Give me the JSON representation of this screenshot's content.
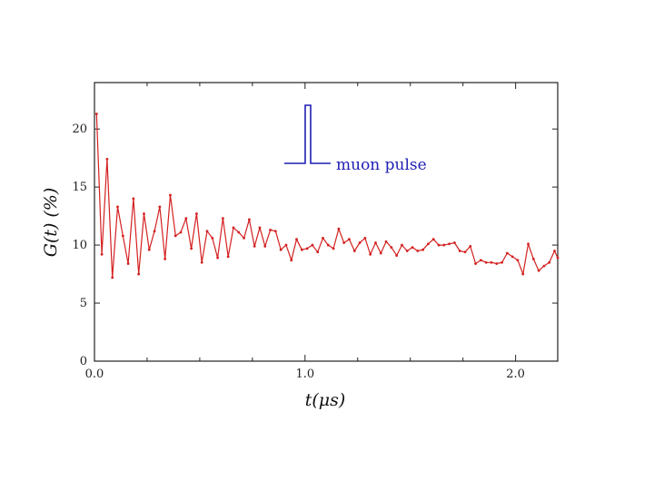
{
  "chart_data": {
    "type": "line",
    "xlabel": "t(μs)",
    "ylabel": "G(t) (%)",
    "xlim": [
      0,
      2.2
    ],
    "ylim": [
      0,
      24
    ],
    "x_ticks": [
      {
        "value": 0.0,
        "label": "0.0"
      },
      {
        "value": 1.0,
        "label": "1.0"
      },
      {
        "value": 2.0,
        "label": "2.0"
      }
    ],
    "y_ticks": [
      {
        "value": 0,
        "label": "0"
      },
      {
        "value": 5,
        "label": "5"
      },
      {
        "value": 10,
        "label": "10"
      },
      {
        "value": 15,
        "label": "15"
      },
      {
        "value": 20,
        "label": "20"
      }
    ],
    "annotation": "muon pulse",
    "grid": false,
    "series": [
      {
        "color": "#d42020",
        "x": [
          0.01,
          0.035,
          0.06,
          0.085,
          0.11,
          0.135,
          0.16,
          0.185,
          0.21,
          0.235,
          0.26,
          0.285,
          0.31,
          0.335,
          0.36,
          0.385,
          0.41,
          0.435,
          0.46,
          0.485,
          0.51,
          0.535,
          0.56,
          0.585,
          0.61,
          0.635,
          0.66,
          0.685,
          0.71,
          0.735,
          0.76,
          0.785,
          0.81,
          0.835,
          0.86,
          0.885,
          0.91,
          0.935,
          0.96,
          0.985,
          1.01,
          1.035,
          1.06,
          1.085,
          1.11,
          1.135,
          1.16,
          1.185,
          1.21,
          1.235,
          1.26,
          1.285,
          1.31,
          1.335,
          1.36,
          1.385,
          1.41,
          1.435,
          1.46,
          1.485,
          1.51,
          1.535,
          1.56,
          1.585,
          1.61,
          1.635,
          1.66,
          1.685,
          1.71,
          1.735,
          1.76,
          1.785,
          1.81,
          1.835,
          1.86,
          1.885,
          1.91,
          1.935,
          1.96,
          1.985,
          2.01,
          2.035,
          2.06,
          2.085,
          2.11,
          2.135,
          2.16,
          2.185,
          2.2
        ],
        "y": [
          21.3,
          9.2,
          17.4,
          7.2,
          13.3,
          10.8,
          8.4,
          14.0,
          7.5,
          12.7,
          9.6,
          11.2,
          13.3,
          8.8,
          14.3,
          10.8,
          11.1,
          12.3,
          9.7,
          12.7,
          8.5,
          11.2,
          10.6,
          8.9,
          12.3,
          9.0,
          11.5,
          11.1,
          10.6,
          12.2,
          9.9,
          11.5,
          9.9,
          11.3,
          11.2,
          9.6,
          10.0,
          8.7,
          10.5,
          9.6,
          9.7,
          10.0,
          9.4,
          10.6,
          10.0,
          9.7,
          11.4,
          10.2,
          10.5,
          9.5,
          10.2,
          10.6,
          9.2,
          10.2,
          9.3,
          10.3,
          9.8,
          9.1,
          10.0,
          9.5,
          9.8,
          9.5,
          9.6,
          10.1,
          10.5,
          10.0,
          10.0,
          10.1,
          10.2,
          9.5,
          9.4,
          9.9,
          8.4,
          8.7,
          8.5,
          8.5,
          8.4,
          8.5,
          9.3,
          9.0,
          8.7,
          7.5,
          10.1,
          8.8,
          7.8,
          8.2,
          8.5,
          9.5,
          8.9
        ]
      }
    ]
  }
}
